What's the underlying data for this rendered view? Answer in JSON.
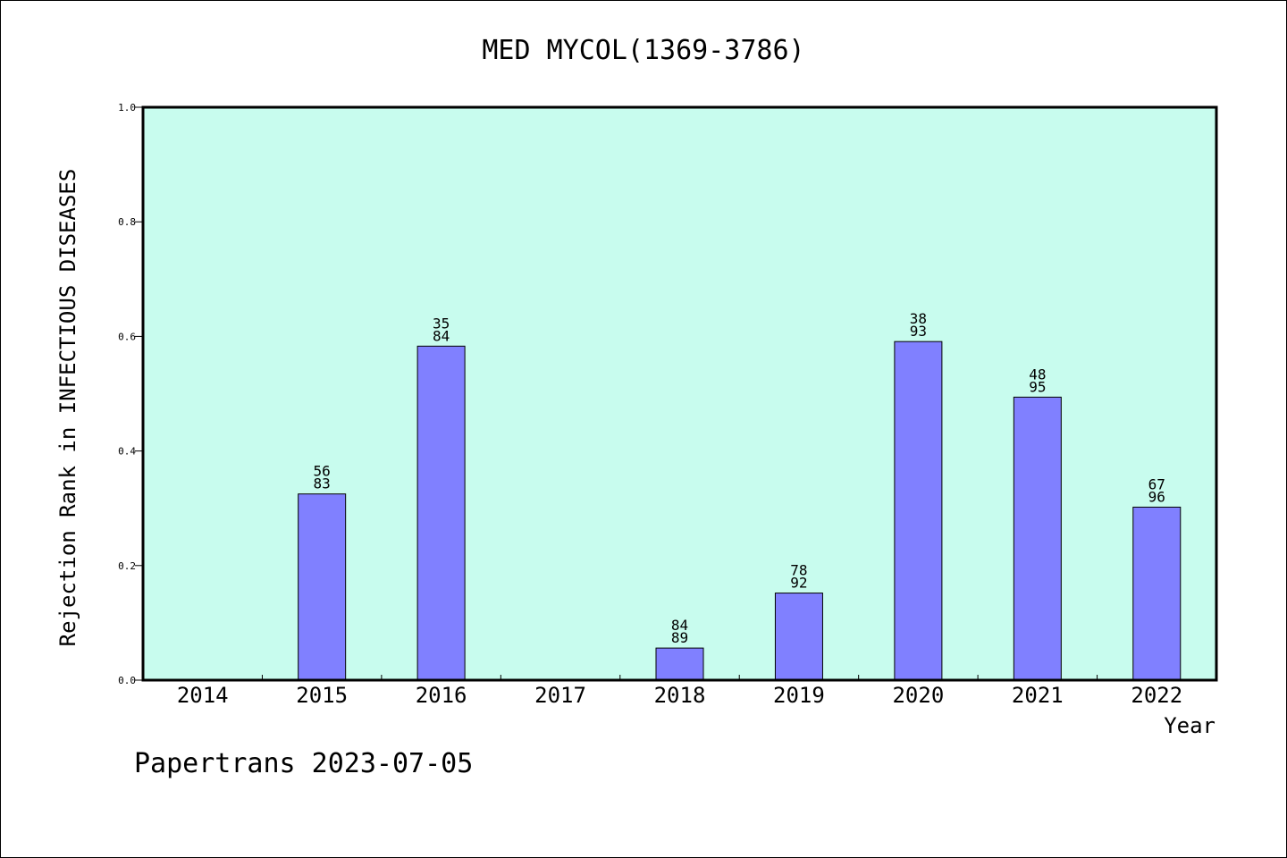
{
  "chart_data": {
    "type": "bar",
    "title": "MED MYCOL(1369-3786)",
    "xlabel": "Year",
    "ylabel": "Rejection Rank in INFECTIOUS DISEASES",
    "ylim": [
      0,
      1.0
    ],
    "yticks": [
      "0.0",
      "0.2",
      "0.4",
      "0.6",
      "0.8",
      "1.0"
    ],
    "grid": false,
    "categories": [
      "2014",
      "2015",
      "2016",
      "2017",
      "2018",
      "2019",
      "2020",
      "2021",
      "2022"
    ],
    "values": [
      0,
      0.325,
      0.583,
      0,
      0.056,
      0.152,
      0.591,
      0.494,
      0.302
    ],
    "labels": [
      null,
      [
        "56",
        "83"
      ],
      [
        "35",
        "84"
      ],
      null,
      [
        "84",
        "89"
      ],
      [
        "78",
        "92"
      ],
      [
        "38",
        "93"
      ],
      [
        "48",
        "95"
      ],
      [
        "67",
        "96"
      ]
    ],
    "colors": {
      "plot_bg": "#c8fcee",
      "bar_fill": "#8080ff",
      "bar_stroke": "#000000"
    }
  },
  "footer": "Papertrans 2023-07-05"
}
